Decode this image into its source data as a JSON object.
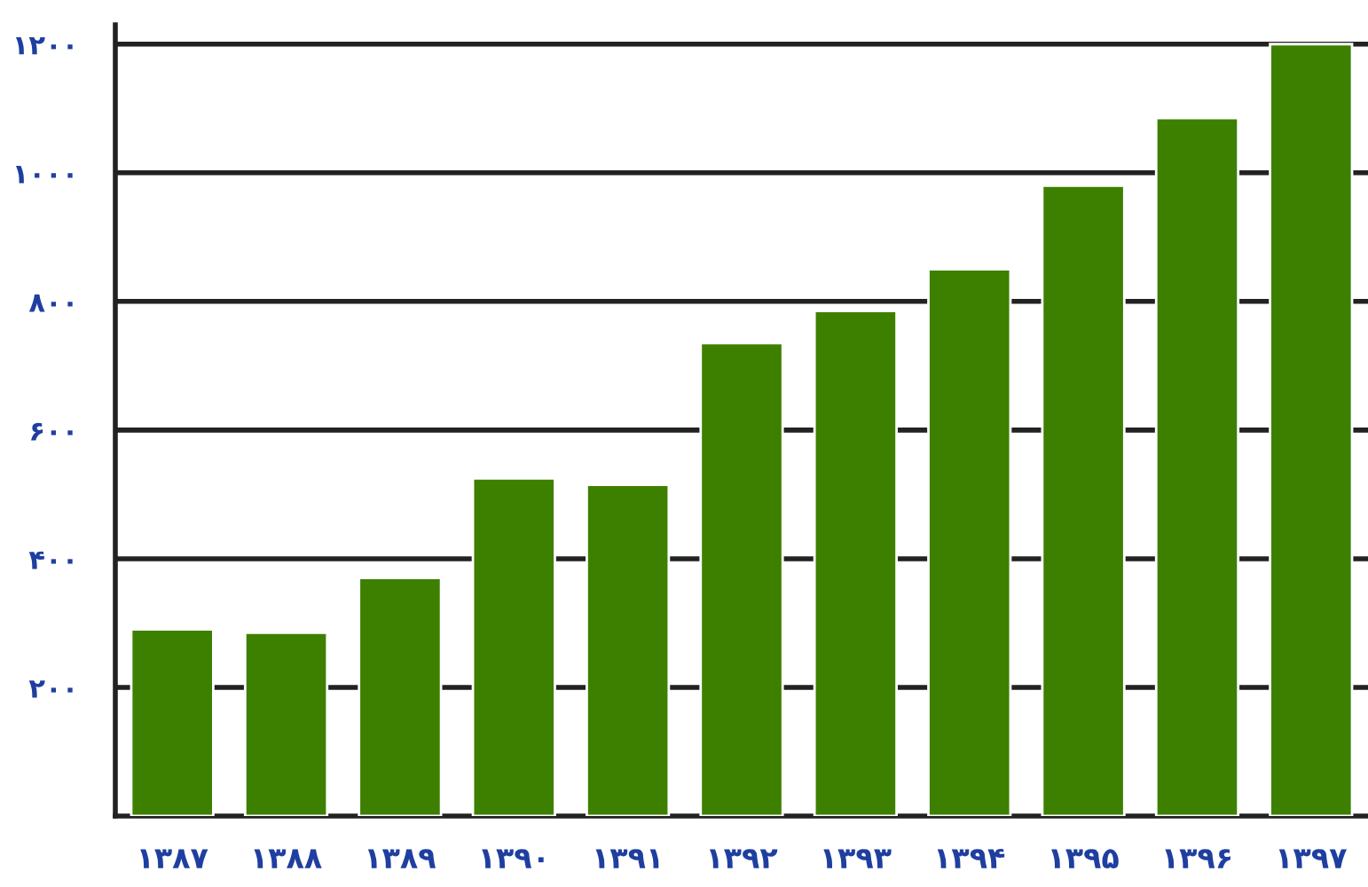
{
  "chart_data": {
    "type": "bar",
    "categories": [
      "۱۳۸۷",
      "۱۳۸۸",
      "۱۳۸۹",
      "۱۳۹۰",
      "۱۳۹۱",
      "۱۳۹۲",
      "۱۳۹۳",
      "۱۳۹۴",
      "۱۳۹۵",
      "۱۳۹۶",
      "۱۳۹۷"
    ],
    "values": [
      290,
      285,
      370,
      525,
      515,
      735,
      785,
      850,
      980,
      1085,
      1200
    ],
    "color": "#3d8000",
    "ylim": [
      0,
      1230
    ],
    "yticks": [
      {
        "value": 200,
        "label": "۲۰۰"
      },
      {
        "value": 400,
        "label": "۴۰۰"
      },
      {
        "value": 600,
        "label": "۶۰۰"
      },
      {
        "value": 800,
        "label": "۸۰۰"
      },
      {
        "value": 1000,
        "label": "۱۰۰۰"
      },
      {
        "value": 1200,
        "label": "۱۲۰۰"
      }
    ],
    "grid": "y"
  }
}
